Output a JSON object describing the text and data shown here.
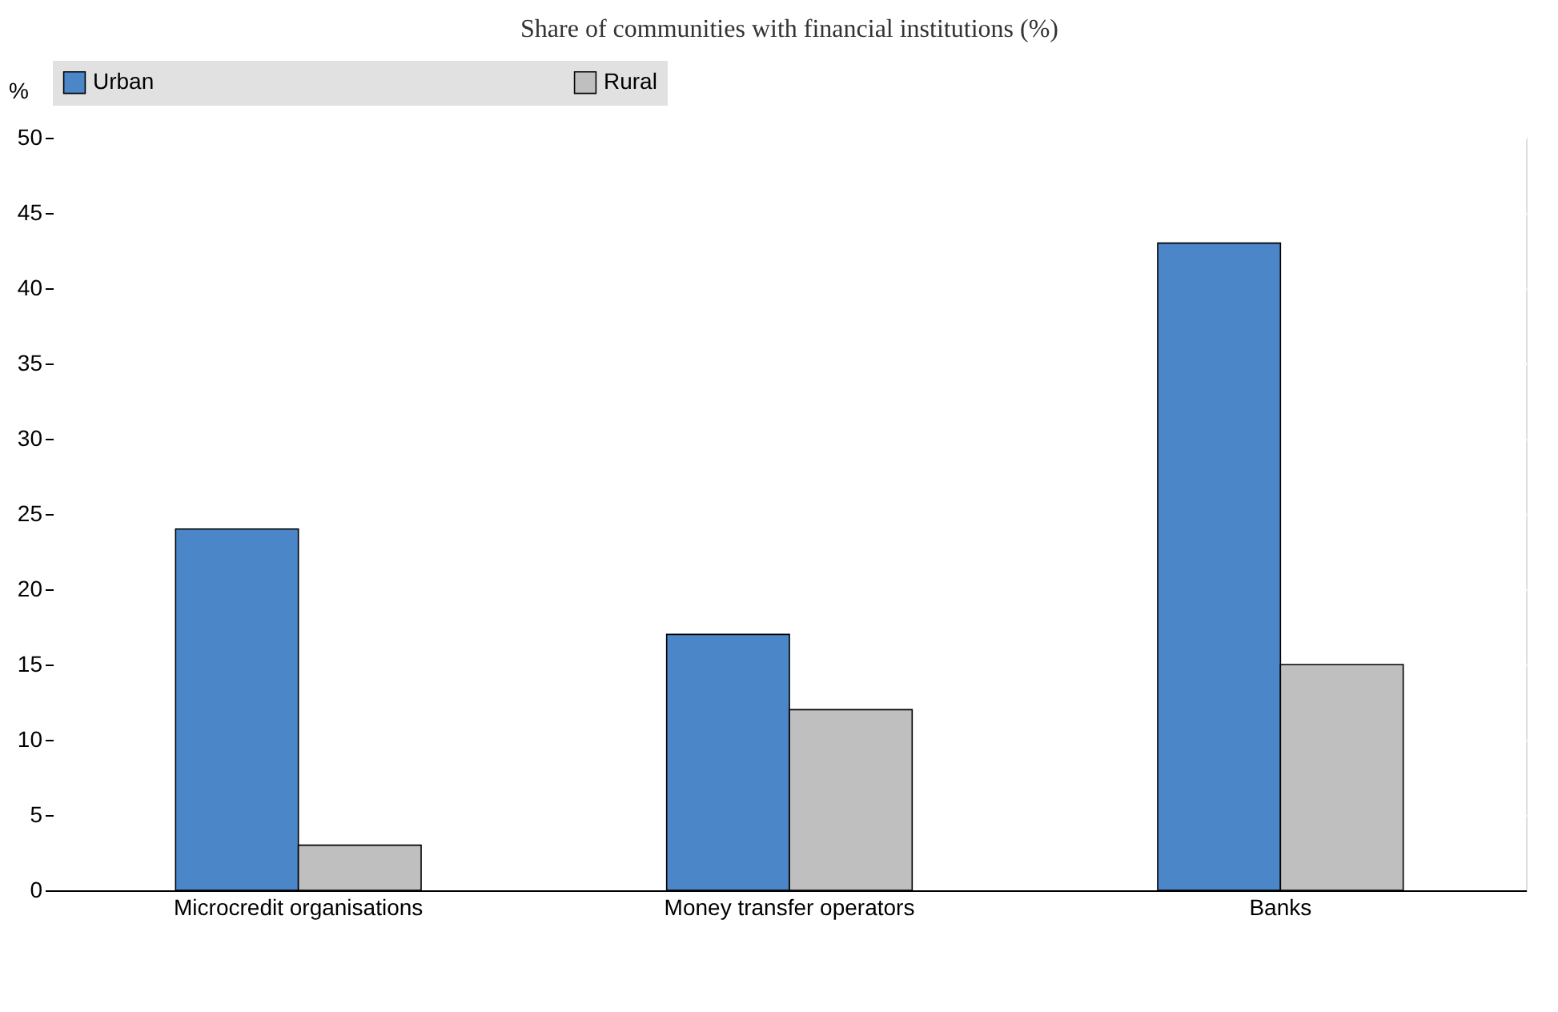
{
  "chart_data": {
    "type": "bar",
    "title": "Share of communities with financial institutions (%)",
    "ylabel": "%",
    "categories": [
      "Microcredit organisations",
      "Money transfer operators",
      "Banks"
    ],
    "series": [
      {
        "name": "Urban",
        "color": "#4a86c8",
        "values": [
          24,
          17,
          43
        ]
      },
      {
        "name": "Rural",
        "color": "#bfbfbf",
        "values": [
          3,
          12,
          15
        ]
      }
    ],
    "ylim": [
      0,
      50
    ],
    "yticks": [
      0,
      5,
      10,
      15,
      20,
      25,
      30,
      35,
      40,
      45,
      50
    ],
    "grid": true,
    "legend": "top"
  }
}
